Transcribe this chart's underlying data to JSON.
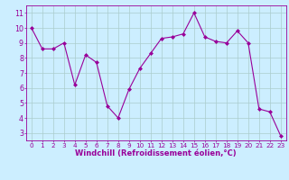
{
  "x": [
    0,
    1,
    2,
    3,
    4,
    5,
    6,
    7,
    8,
    9,
    10,
    11,
    12,
    13,
    14,
    15,
    16,
    17,
    18,
    19,
    20,
    21,
    22,
    23
  ],
  "y": [
    10.0,
    8.6,
    8.6,
    9.0,
    6.2,
    8.2,
    7.7,
    4.8,
    4.0,
    5.9,
    7.3,
    8.3,
    9.3,
    9.4,
    9.6,
    11.0,
    9.4,
    9.1,
    9.0,
    9.8,
    9.0,
    4.6,
    4.4,
    2.8
  ],
  "line_color": "#990099",
  "marker_color": "#990099",
  "bg_color": "#cceeff",
  "grid_color": "#aacccc",
  "xlabel": "Windchill (Refroidissement éolien,°C)",
  "ylim": [
    2.5,
    11.5
  ],
  "xlim": [
    -0.5,
    23.5
  ],
  "yticks": [
    3,
    4,
    5,
    6,
    7,
    8,
    9,
    10,
    11
  ],
  "xticks": [
    0,
    1,
    2,
    3,
    4,
    5,
    6,
    7,
    8,
    9,
    10,
    11,
    12,
    13,
    14,
    15,
    16,
    17,
    18,
    19,
    20,
    21,
    22,
    23
  ],
  "axis_label_color": "#990099",
  "tick_color": "#990099",
  "xlabel_fontsize": 6.0,
  "tick_fontsize_x": 5.2,
  "tick_fontsize_y": 5.8
}
